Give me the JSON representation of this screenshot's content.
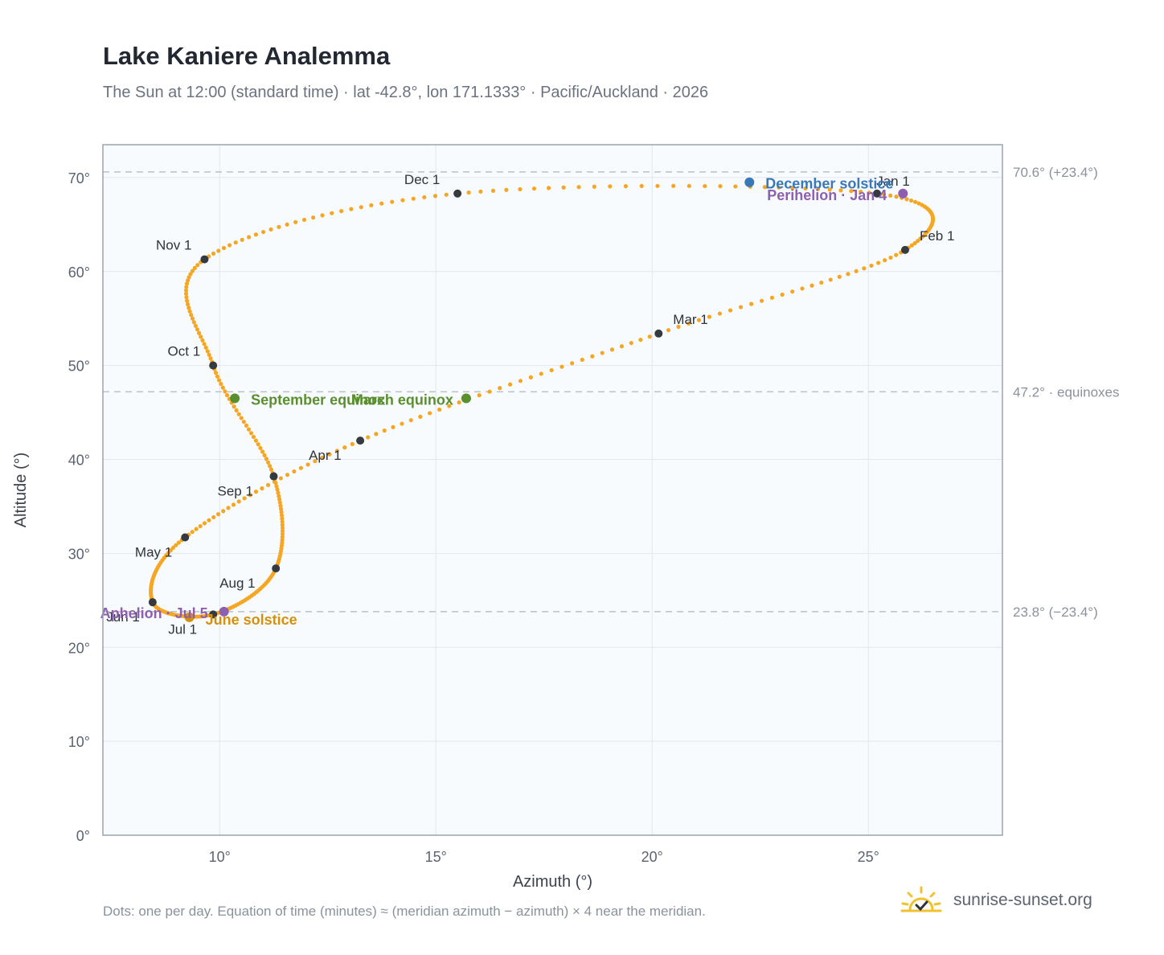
{
  "header": {
    "title": "Lake Kaniere Analemma",
    "subtitle": "The Sun at 12:00 (standard time) · lat -42.8°, lon 171.1333° · Pacific/Auckland · 2026"
  },
  "footer": {
    "note": "Dots: one per day. Equation of time (minutes) ≈ (meridian azimuth − azimuth) × 4 near the meridian.",
    "brand": "sunrise-sunset.org"
  },
  "colors": {
    "curve": "#f5a623",
    "month_marker": "#343a40",
    "equinox": "#5a8f2e",
    "june_solstice": "#d4900e",
    "december_solstice": "#3a78b8",
    "apsis": "#8e5fb0",
    "plot_bg": "#f8fbfd",
    "grid": "#e2e7ec",
    "ref_line": "#b9c1c9"
  },
  "chart_data": {
    "type": "scatter",
    "xlabel": "Azimuth (°)",
    "ylabel": "Altitude (°)",
    "xlim": [
      7.3,
      28.1
    ],
    "ylim": [
      0,
      73.5
    ],
    "x_ticks": [
      10,
      15,
      20,
      25
    ],
    "y_ticks": [
      0,
      10,
      20,
      30,
      40,
      50,
      60,
      70
    ],
    "x_tick_labels": [
      "10°",
      "15°",
      "20°",
      "25°"
    ],
    "y_tick_labels": [
      "0°",
      "10°",
      "20°",
      "30°",
      "40°",
      "50°",
      "60°",
      "70°"
    ],
    "grid": true,
    "month_markers": [
      {
        "label": "Jan 1",
        "x": 25.2,
        "y": 68.3
      },
      {
        "label": "Feb 1",
        "x": 25.85,
        "y": 62.3
      },
      {
        "label": "Mar 1",
        "x": 20.15,
        "y": 53.4
      },
      {
        "label": "Apr 1",
        "x": 13.25,
        "y": 42.0
      },
      {
        "label": "May 1",
        "x": 9.2,
        "y": 31.7
      },
      {
        "label": "Jun 1",
        "x": 8.45,
        "y": 24.8
      },
      {
        "label": "Jul 1",
        "x": 9.85,
        "y": 23.5
      },
      {
        "label": "Aug 1",
        "x": 11.3,
        "y": 28.4
      },
      {
        "label": "Sep 1",
        "x": 11.25,
        "y": 38.2
      },
      {
        "label": "Oct 1",
        "x": 9.85,
        "y": 50.0
      },
      {
        "label": "Nov 1",
        "x": 9.65,
        "y": 61.3
      },
      {
        "label": "Dec 1",
        "x": 15.5,
        "y": 68.3
      }
    ],
    "events": [
      {
        "label": "December solstice",
        "x": 22.25,
        "y": 69.5,
        "color": "#3a78b8"
      },
      {
        "label": "Perihelion · Jan 4",
        "x": 25.8,
        "y": 68.3,
        "color": "#8e5fb0"
      },
      {
        "label": "March equinox",
        "x": 15.7,
        "y": 46.5,
        "color": "#5a8f2e"
      },
      {
        "label": "September equinox",
        "x": 10.35,
        "y": 46.5,
        "color": "#5a8f2e"
      },
      {
        "label": "June solstice",
        "x": 9.3,
        "y": 23.2,
        "color": "#d4900e"
      },
      {
        "label": "Aphelion · Jul 5",
        "x": 10.1,
        "y": 23.8,
        "color": "#8e5fb0"
      }
    ],
    "reference_lines": [
      {
        "y": 70.6,
        "label": "70.6° (+23.4°)"
      },
      {
        "y": 47.2,
        "label": "47.2° · equinoxes"
      },
      {
        "y": 23.8,
        "label": "23.8° (−23.4°)"
      }
    ]
  }
}
